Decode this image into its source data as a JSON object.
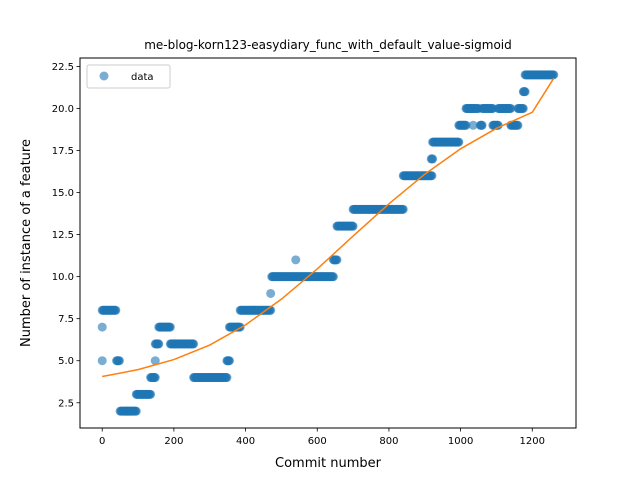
{
  "chart_data": {
    "type": "scatter",
    "title": "me-blog-korn123-easydiary_func_with_default_value-sigmoid",
    "xlabel": "Commit number",
    "ylabel": "Number of instance of a feature",
    "xlim": [
      -62,
      1322
    ],
    "ylim": [
      1.0,
      23.0
    ],
    "xticks": [
      0,
      200,
      400,
      600,
      800,
      1000,
      1200
    ],
    "yticks": [
      2.5,
      5.0,
      7.5,
      10.0,
      12.5,
      15.0,
      17.5,
      20.0,
      22.5
    ],
    "xtick_labels": [
      "0",
      "200",
      "400",
      "600",
      "800",
      "1000",
      "1200"
    ],
    "ytick_labels": [
      "2.5",
      "5.0",
      "7.5",
      "10.0",
      "12.5",
      "15.0",
      "17.5",
      "20.0",
      "22.5"
    ],
    "grid": false,
    "legend": {
      "position": "top-left",
      "entries": [
        "data"
      ]
    },
    "colors": {
      "data": "#1f77b4",
      "fit": "#ff7f0e"
    },
    "series": [
      {
        "name": "data",
        "kind": "scatter",
        "segments": [
          {
            "x_start": 0,
            "x_end": 0,
            "y": 7
          },
          {
            "x_start": 0,
            "x_end": 0,
            "y": 5
          },
          {
            "x_start": 0,
            "x_end": 38,
            "y": 8
          },
          {
            "x_start": 40,
            "x_end": 48,
            "y": 5
          },
          {
            "x_start": 50,
            "x_end": 95,
            "y": 2
          },
          {
            "x_start": 95,
            "x_end": 135,
            "y": 3
          },
          {
            "x_start": 135,
            "x_end": 148,
            "y": 4
          },
          {
            "x_start": 148,
            "x_end": 148,
            "y": 5
          },
          {
            "x_start": 148,
            "x_end": 158,
            "y": 6
          },
          {
            "x_start": 158,
            "x_end": 190,
            "y": 7
          },
          {
            "x_start": 190,
            "x_end": 255,
            "y": 6
          },
          {
            "x_start": 255,
            "x_end": 348,
            "y": 4
          },
          {
            "x_start": 348,
            "x_end": 355,
            "y": 5
          },
          {
            "x_start": 355,
            "x_end": 385,
            "y": 7
          },
          {
            "x_start": 385,
            "x_end": 470,
            "y": 8
          },
          {
            "x_start": 470,
            "x_end": 470,
            "y": 9
          },
          {
            "x_start": 473,
            "x_end": 645,
            "y": 10
          },
          {
            "x_start": 540,
            "x_end": 540,
            "y": 11
          },
          {
            "x_start": 645,
            "x_end": 655,
            "y": 11
          },
          {
            "x_start": 655,
            "x_end": 700,
            "y": 13
          },
          {
            "x_start": 700,
            "x_end": 840,
            "y": 14
          },
          {
            "x_start": 840,
            "x_end": 920,
            "y": 16
          },
          {
            "x_start": 918,
            "x_end": 922,
            "y": 17
          },
          {
            "x_start": 922,
            "x_end": 995,
            "y": 18
          },
          {
            "x_start": 995,
            "x_end": 1015,
            "y": 19
          },
          {
            "x_start": 1015,
            "x_end": 1030,
            "y": 20
          },
          {
            "x_start": 1035,
            "x_end": 1035,
            "y": 19
          },
          {
            "x_start": 1030,
            "x_end": 1050,
            "y": 20
          },
          {
            "x_start": 1055,
            "x_end": 1060,
            "y": 19
          },
          {
            "x_start": 1060,
            "x_end": 1090,
            "y": 20
          },
          {
            "x_start": 1090,
            "x_end": 1105,
            "y": 19
          },
          {
            "x_start": 1105,
            "x_end": 1140,
            "y": 20
          },
          {
            "x_start": 1140,
            "x_end": 1160,
            "y": 19
          },
          {
            "x_start": 1160,
            "x_end": 1175,
            "y": 20
          },
          {
            "x_start": 1175,
            "x_end": 1180,
            "y": 21
          },
          {
            "x_start": 1180,
            "x_end": 1260,
            "y": 22
          }
        ]
      },
      {
        "name": "",
        "kind": "line",
        "x": [
          0,
          100,
          200,
          300,
          400,
          500,
          600,
          700,
          800,
          900,
          1000,
          1100,
          1200,
          1260
        ],
        "y": [
          4.06,
          4.47,
          5.07,
          5.93,
          7.13,
          8.66,
          10.46,
          12.41,
          14.33,
          16.09,
          17.6,
          18.82,
          19.77,
          21.8
        ]
      }
    ]
  }
}
